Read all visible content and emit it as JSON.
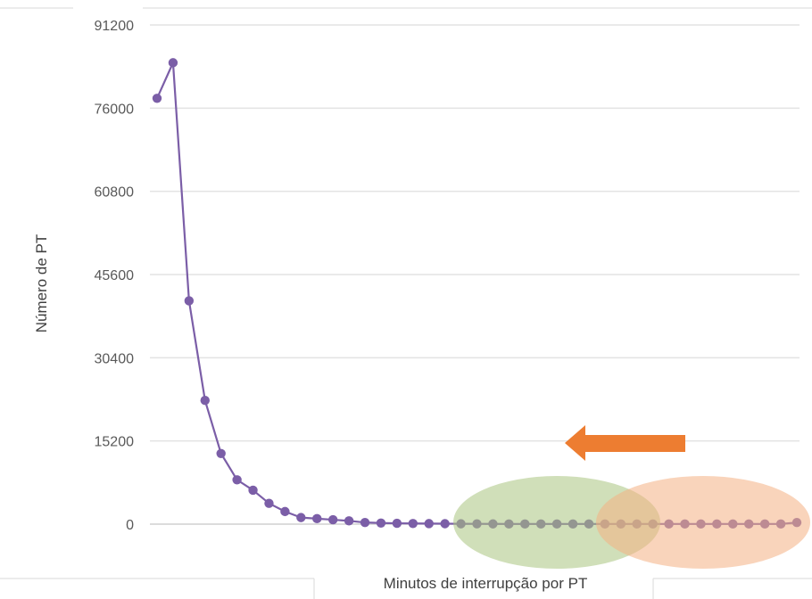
{
  "chart_data": {
    "type": "line",
    "title": "",
    "xlabel": "Minutos de interrupção por PT",
    "ylabel": "Número de PT",
    "ylim": [
      0,
      91200
    ],
    "yticks": [
      0,
      15200,
      30400,
      45600,
      60800,
      76000,
      91200
    ],
    "grid": true,
    "x": [
      1,
      2,
      3,
      4,
      5,
      6,
      7,
      8,
      9,
      10,
      11,
      12,
      13,
      14,
      15,
      16,
      17,
      18,
      19,
      20,
      21,
      22,
      23,
      24,
      25,
      26,
      27,
      28,
      29,
      30,
      31,
      32,
      33,
      34,
      35,
      36,
      37,
      38,
      39,
      40,
      41
    ],
    "series": [
      {
        "name": "",
        "color": "#7b5ea7",
        "values": [
          77800,
          84300,
          40800,
          22600,
          12900,
          8100,
          6200,
          3800,
          2300,
          1200,
          1000,
          800,
          600,
          300,
          200,
          150,
          120,
          100,
          80,
          60,
          50,
          40,
          30,
          30,
          30,
          30,
          30,
          30,
          30,
          30,
          30,
          30,
          30,
          30,
          30,
          30,
          30,
          30,
          30,
          30,
          300
        ]
      }
    ],
    "annotations": [
      {
        "kind": "arrow",
        "direction": "left",
        "color": "#ed7d31"
      },
      {
        "kind": "ellipse",
        "color": "#a9c47f"
      },
      {
        "kind": "ellipse",
        "color": "#f4b183"
      }
    ]
  }
}
